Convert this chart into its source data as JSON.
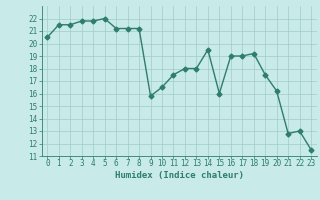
{
  "x": [
    0,
    1,
    2,
    3,
    4,
    5,
    6,
    7,
    8,
    9,
    10,
    11,
    12,
    13,
    14,
    15,
    16,
    17,
    18,
    19,
    20,
    21,
    22,
    23
  ],
  "y": [
    20.5,
    21.5,
    21.5,
    21.8,
    21.8,
    22.0,
    21.2,
    21.2,
    21.2,
    15.8,
    16.5,
    17.5,
    18.0,
    18.0,
    19.5,
    16.0,
    19.0,
    19.0,
    19.2,
    17.5,
    16.2,
    12.8,
    13.0,
    11.5
  ],
  "line_color": "#2e7d6e",
  "marker": "D",
  "marker_size": 2.5,
  "bg_color": "#c8eae8",
  "grid_color": "#a0ccc8",
  "xlabel": "Humidex (Indice chaleur)",
  "ylim": [
    11,
    23
  ],
  "xlim": [
    -0.5,
    23.5
  ],
  "yticks": [
    11,
    12,
    13,
    14,
    15,
    16,
    17,
    18,
    19,
    20,
    21,
    22
  ],
  "xticks": [
    0,
    1,
    2,
    3,
    4,
    5,
    6,
    7,
    8,
    9,
    10,
    11,
    12,
    13,
    14,
    15,
    16,
    17,
    18,
    19,
    20,
    21,
    22,
    23
  ],
  "xlabel_fontsize": 6.5,
  "tick_fontsize": 5.5,
  "line_width": 1.0
}
